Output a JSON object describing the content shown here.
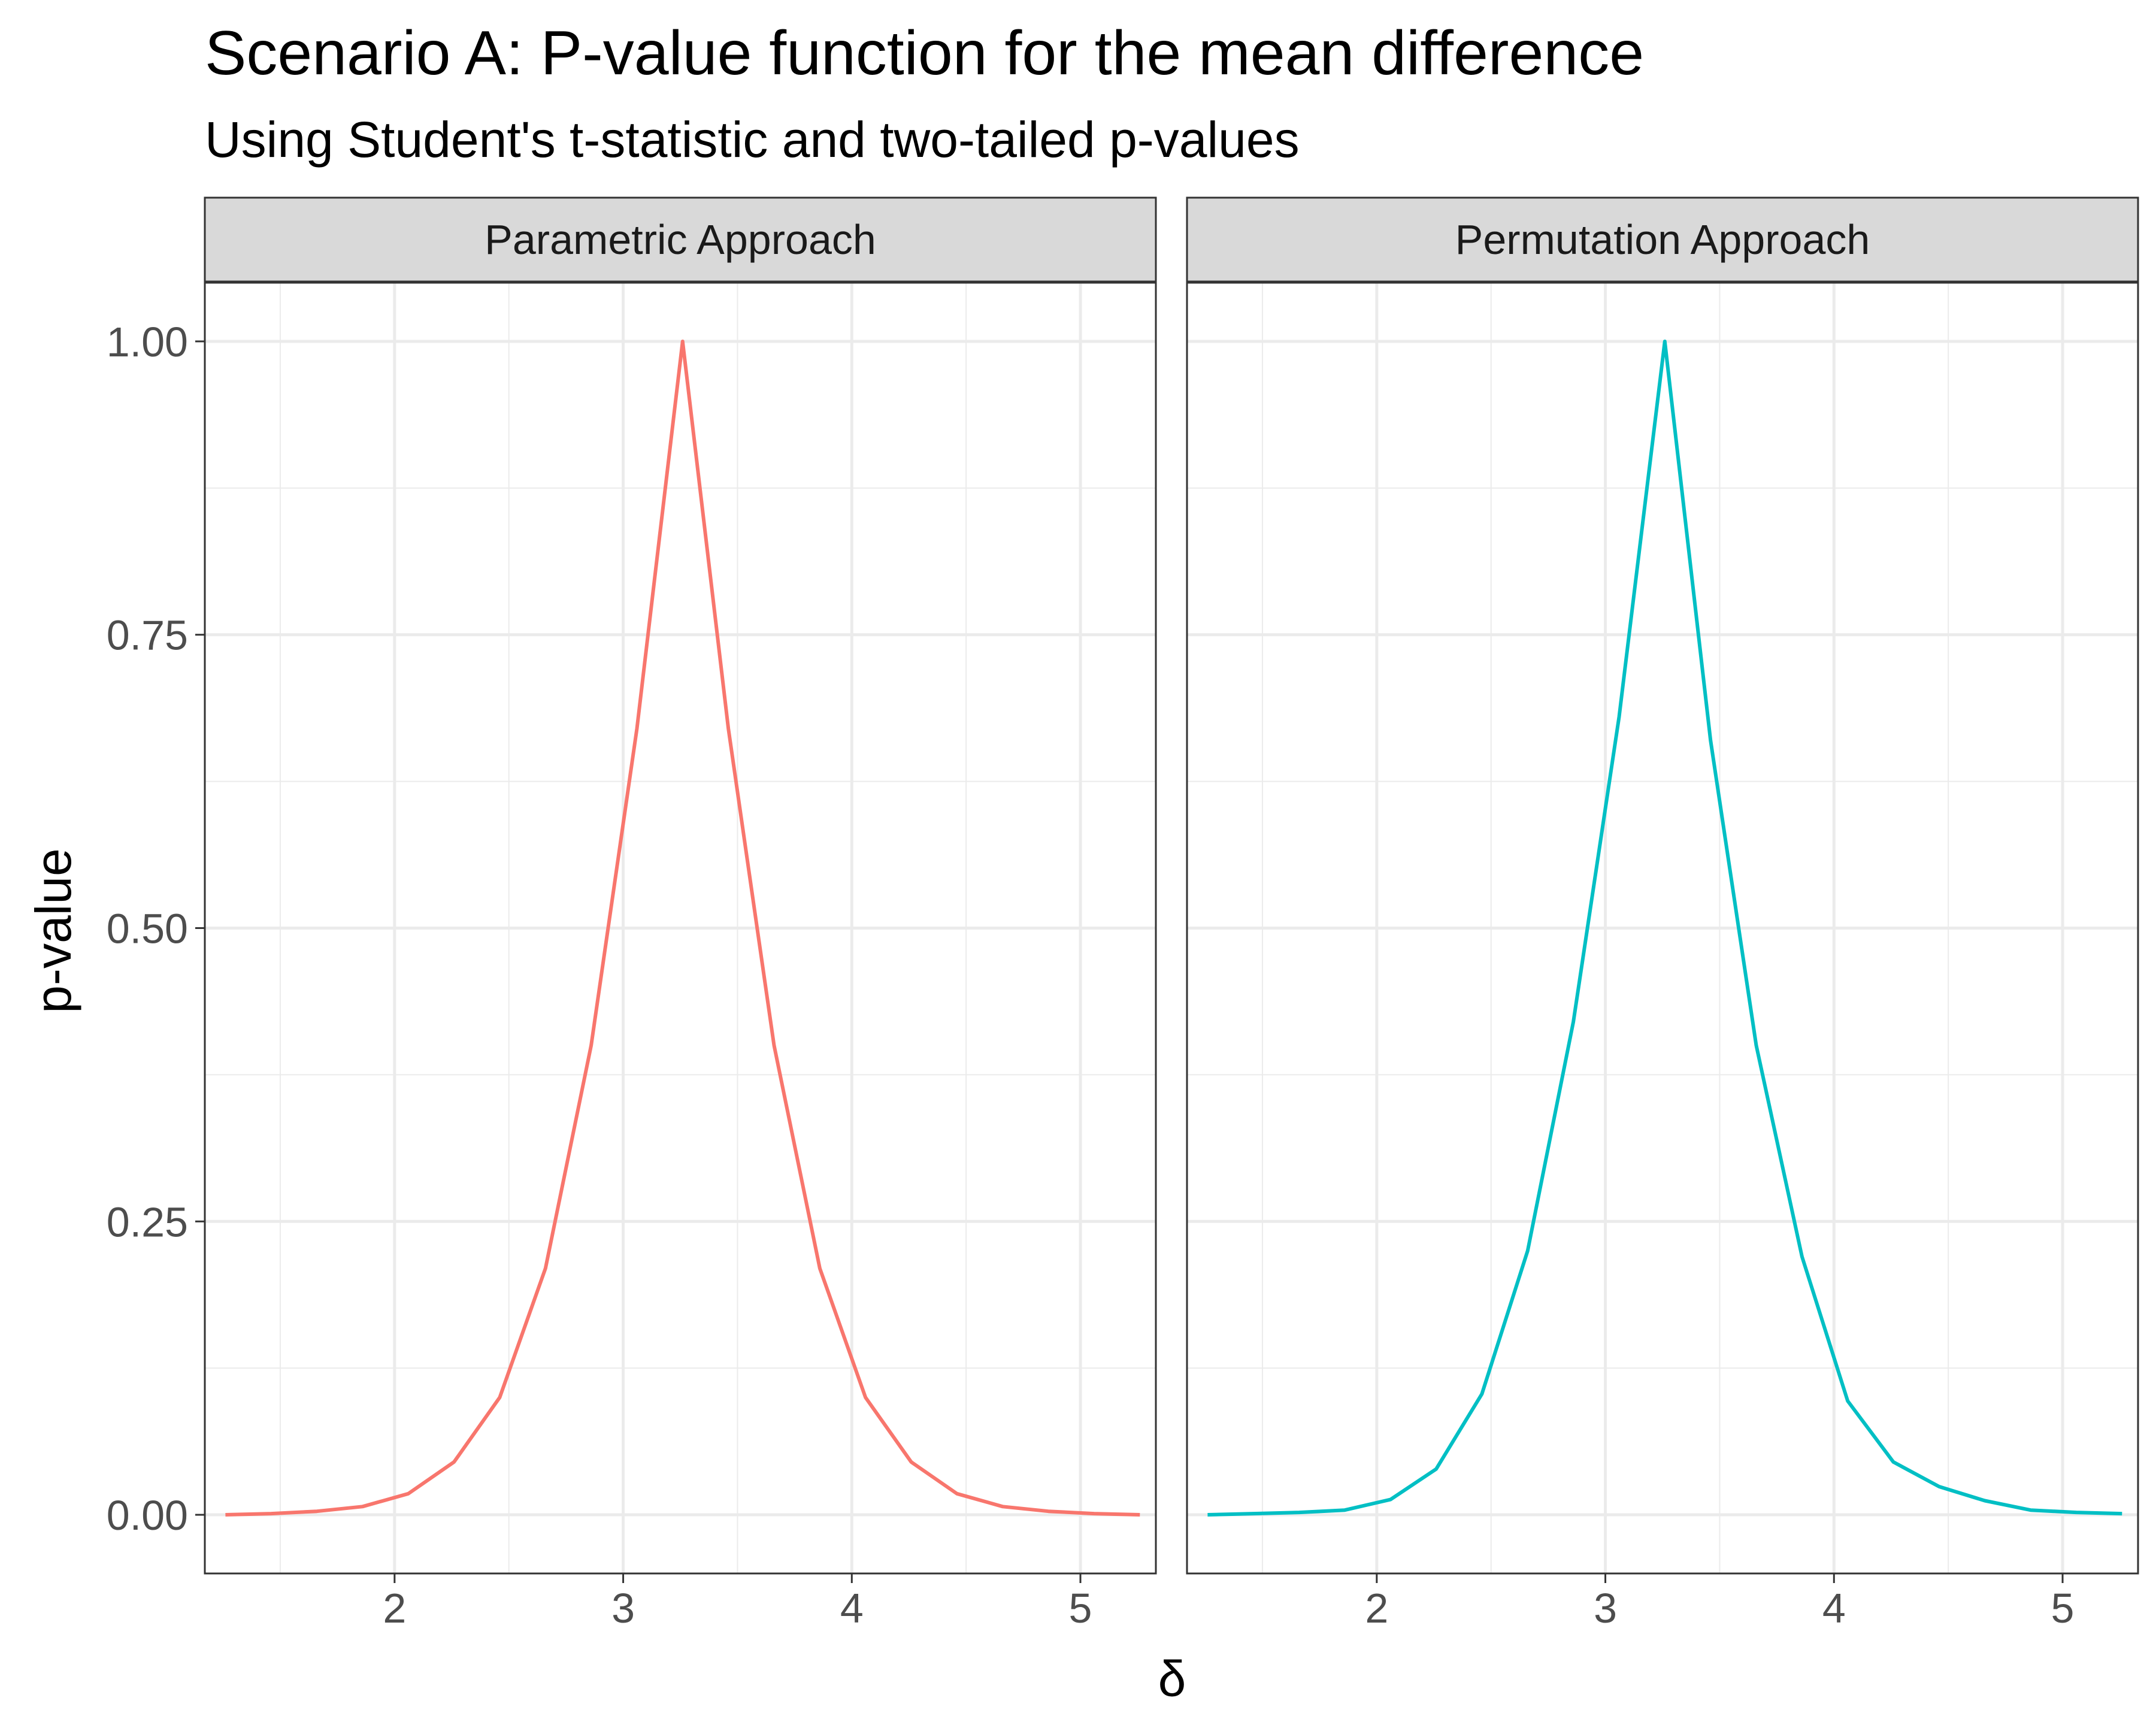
{
  "chart_data": {
    "type": "line",
    "title": "Scenario A: P-value function for the mean difference",
    "subtitle": "Using Student's t-statistic and two-tailed p-values",
    "xlabel": "δ",
    "ylabel": "p-value",
    "xlim": [
      1.17,
      5.33
    ],
    "ylim": [
      -0.05,
      1.05
    ],
    "x_ticks": [
      2,
      3,
      4,
      5
    ],
    "x_tick_labels": [
      "2",
      "3",
      "4",
      "5"
    ],
    "y_ticks": [
      0,
      0.25,
      0.5,
      0.75,
      1
    ],
    "y_tick_labels": [
      "0.00",
      "0.25",
      "0.50",
      "0.75",
      "1.00"
    ],
    "grid": true,
    "legend": "none",
    "panels": [
      {
        "label": "Parametric Approach",
        "color": "#F8766D",
        "x": [
          1.26,
          1.46,
          1.66,
          1.86,
          2.06,
          2.26,
          2.46,
          2.66,
          2.86,
          3.06,
          3.26,
          3.46,
          3.66,
          3.86,
          4.06,
          4.26,
          4.46,
          4.66,
          4.86,
          5.06,
          5.26
        ],
        "y": [
          0.0,
          0.001,
          0.003,
          0.007,
          0.018,
          0.045,
          0.1,
          0.21,
          0.4,
          0.67,
          1.0,
          0.67,
          0.4,
          0.21,
          0.1,
          0.045,
          0.018,
          0.007,
          0.003,
          0.001,
          0.0
        ]
      },
      {
        "label": "Permutation Approach",
        "color": "#00BFC4",
        "x": [
          1.26,
          1.46,
          1.66,
          1.86,
          2.06,
          2.26,
          2.46,
          2.66,
          2.86,
          3.06,
          3.26,
          3.46,
          3.66,
          3.86,
          4.06,
          4.26,
          4.46,
          4.66,
          4.86,
          5.06,
          5.26
        ],
        "y": [
          0.0,
          0.001,
          0.002,
          0.004,
          0.013,
          0.039,
          0.103,
          0.225,
          0.42,
          0.68,
          1.0,
          0.66,
          0.4,
          0.22,
          0.097,
          0.045,
          0.024,
          0.012,
          0.004,
          0.002,
          0.001
        ]
      }
    ]
  }
}
